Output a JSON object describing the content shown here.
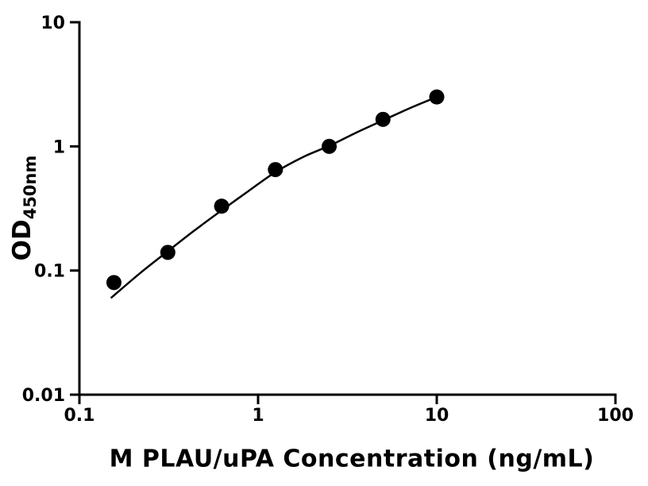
{
  "chart_data": {
    "type": "scatter",
    "title": "",
    "xlabel": "M PLAU/uPA Concentration (ng/mL)",
    "ylabel_main": "OD",
    "ylabel_sub": "450nm",
    "x_scale": "log",
    "y_scale": "log",
    "xlim": [
      0.1,
      100
    ],
    "ylim": [
      0.01,
      10
    ],
    "grid": false,
    "legend": "none",
    "x_ticks": [
      {
        "value": 0.1,
        "label": "0.1"
      },
      {
        "value": 1,
        "label": "1"
      },
      {
        "value": 10,
        "label": "10"
      },
      {
        "value": 100,
        "label": "100"
      }
    ],
    "y_ticks": [
      {
        "value": 0.01,
        "label": "0.01"
      },
      {
        "value": 0.1,
        "label": "0.1"
      },
      {
        "value": 1,
        "label": "1"
      },
      {
        "value": 10,
        "label": "10"
      }
    ],
    "series": [
      {
        "name": "standard-points",
        "marker": "circle",
        "marker_radius": 9.5,
        "x": [
          0.156,
          0.3125,
          0.625,
          1.25,
          2.5,
          5,
          10
        ],
        "y": [
          0.08,
          0.14,
          0.33,
          0.65,
          1.0,
          1.65,
          2.5
        ]
      }
    ],
    "fit_curve": {
      "x": [
        0.15,
        0.22,
        0.3125,
        0.44,
        0.625,
        0.88,
        1.25,
        1.8,
        2.5,
        3.5,
        5,
        7,
        10
      ],
      "y": [
        0.06,
        0.096,
        0.143,
        0.21,
        0.305,
        0.435,
        0.62,
        0.825,
        1.01,
        1.28,
        1.62,
        2.02,
        2.5
      ]
    },
    "colors": {
      "axis": "#000000",
      "points": "#000000",
      "curve": "#000000",
      "text": "#000000",
      "background": "#ffffff"
    }
  }
}
